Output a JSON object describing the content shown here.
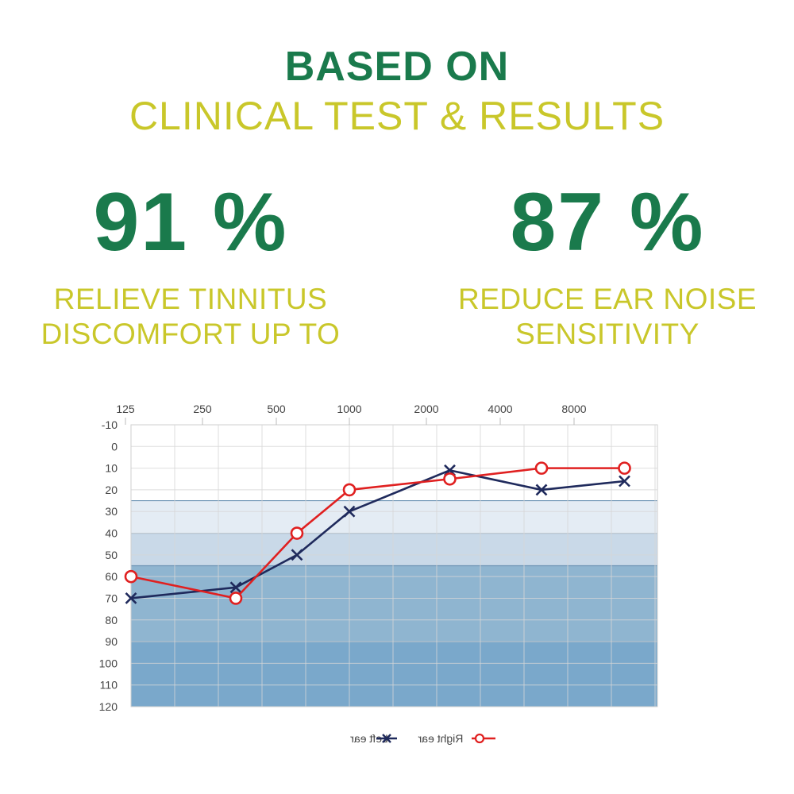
{
  "header": {
    "line1": "BASED ON",
    "line2": "CLINICAL TEST & RESULTS"
  },
  "stats": [
    {
      "value": "91 %",
      "label_line1": "RELIEVE TINNITUS",
      "label_line2": "DISCOMFORT UP TO"
    },
    {
      "value": "87 %",
      "label_line1": "REDUCE EAR NOISE",
      "label_line2": "SENSITIVITY"
    }
  ],
  "colors": {
    "green": "#1a7a4c",
    "yellow": "#c9c72a",
    "left_ear": "#1f2a5c",
    "right_ear": "#e02020"
  },
  "chart_data": {
    "type": "line",
    "title": "",
    "x_ticks": [
      "125",
      "250",
      "500",
      "1000",
      "2000",
      "4000",
      "8000"
    ],
    "y_ticks": [
      "-10",
      "0",
      "10",
      "20",
      "30",
      "40",
      "50",
      "60",
      "70",
      "80",
      "90",
      "100",
      "110",
      "120"
    ],
    "ylim": [
      -10,
      120
    ],
    "y_inverted": true,
    "grid": true,
    "legend_position": "bottom-center",
    "shaded_bands": [
      {
        "from": 25,
        "to": 40,
        "color": "#e4ecf4"
      },
      {
        "from": 40,
        "to": 55,
        "color": "#c9d9e8"
      },
      {
        "from": 55,
        "to": 90,
        "color": "#8fb5d0"
      },
      {
        "from": 90,
        "to": 120,
        "color": "#7aa8cb"
      }
    ],
    "series": [
      {
        "name": "Left ear",
        "marker": "x",
        "color": "#1f2a5c",
        "points": [
          {
            "x": 0.0,
            "y": 70
          },
          {
            "x": 1.2,
            "y": 65
          },
          {
            "x": 1.9,
            "y": 50
          },
          {
            "x": 2.5,
            "y": 30
          },
          {
            "x": 3.65,
            "y": 11
          },
          {
            "x": 4.7,
            "y": 20
          },
          {
            "x": 5.65,
            "y": 16
          }
        ]
      },
      {
        "name": "Right ear",
        "marker": "o",
        "color": "#e02020",
        "points": [
          {
            "x": 0.0,
            "y": 60
          },
          {
            "x": 1.2,
            "y": 70
          },
          {
            "x": 1.9,
            "y": 40
          },
          {
            "x": 2.5,
            "y": 20
          },
          {
            "x": 3.65,
            "y": 15
          },
          {
            "x": 4.7,
            "y": 10
          },
          {
            "x": 5.65,
            "y": 10
          }
        ]
      }
    ]
  }
}
